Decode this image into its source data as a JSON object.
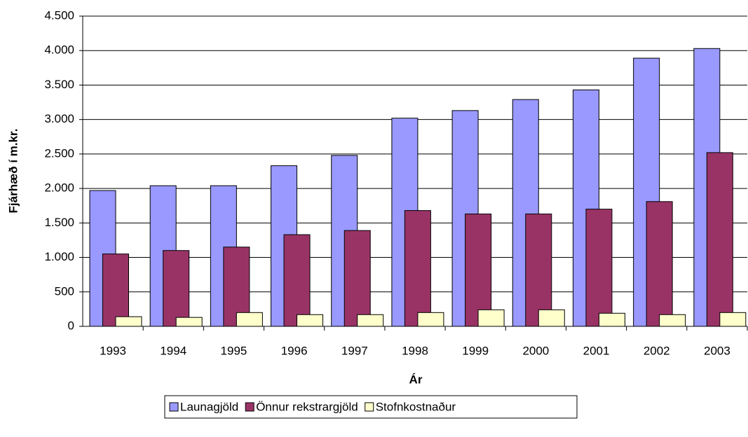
{
  "chart_data": {
    "type": "bar",
    "xlabel": "Ár",
    "ylabel": "Fjárhæð í m.kr.",
    "categories": [
      "1993",
      "1994",
      "1995",
      "1996",
      "1997",
      "1998",
      "1999",
      "2000",
      "2001",
      "2002",
      "2003"
    ],
    "series": [
      {
        "name": "Launagjöld",
        "color": "#9999ff",
        "values": [
          1970,
          2040,
          2040,
          2330,
          2480,
          3020,
          3130,
          3290,
          3430,
          3890,
          4030
        ]
      },
      {
        "name": "Önnur rekstrargjöld",
        "color": "#993366",
        "values": [
          1050,
          1100,
          1150,
          1330,
          1390,
          1680,
          1630,
          1630,
          1700,
          1810,
          2520
        ]
      },
      {
        "name": "Stofnkostnaður",
        "color": "#ffffcc",
        "values": [
          140,
          130,
          200,
          170,
          170,
          200,
          240,
          240,
          190,
          170,
          200
        ]
      }
    ],
    "ylim": [
      0,
      4500
    ],
    "yticks": [
      0,
      {
        "value": 500,
        "label": "500"
      },
      {
        "value": 1000,
        "label": "1.000"
      },
      {
        "value": 1500,
        "label": "1.500"
      },
      {
        "value": 2000,
        "label": "2.000"
      },
      {
        "value": 2500,
        "label": "2.500"
      },
      {
        "value": 3000,
        "label": "3.000"
      },
      {
        "value": 3500,
        "label": "3.500"
      },
      {
        "value": 4000,
        "label": "4.000"
      },
      {
        "value": 4500,
        "label": "4.500"
      }
    ],
    "grid": true,
    "legend": "bottom"
  }
}
